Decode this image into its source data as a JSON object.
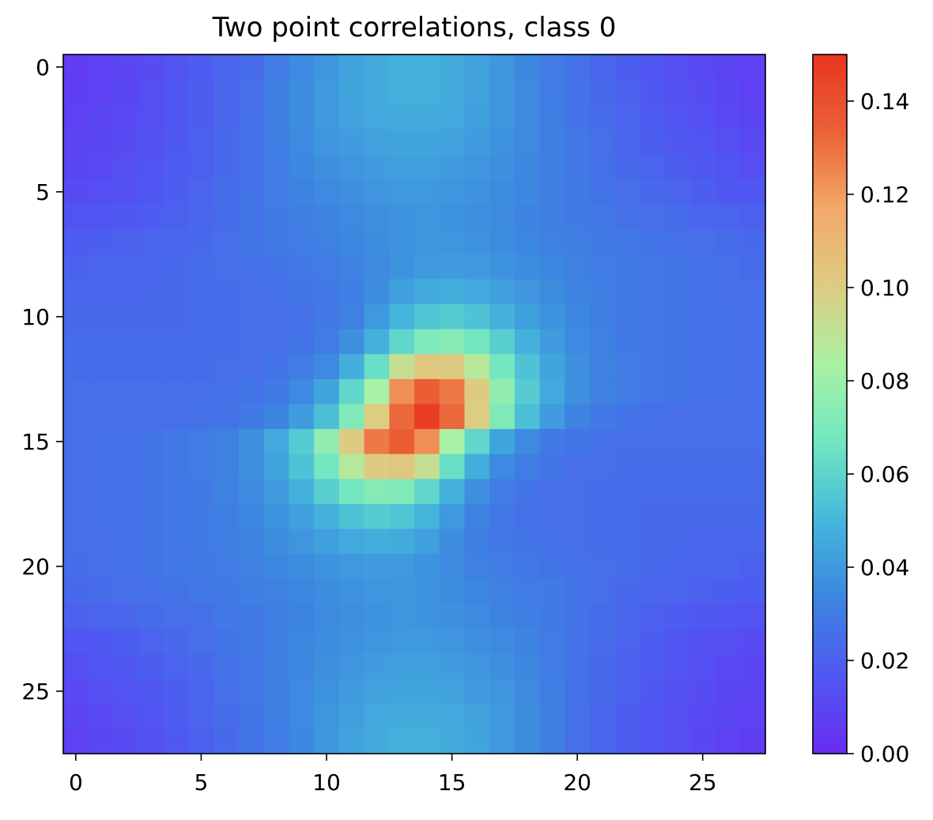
{
  "chart_data": {
    "type": "heatmap",
    "title": "Two point correlations, class 0",
    "xlabel": "",
    "ylabel": "",
    "rows": 28,
    "cols": 28,
    "xlim": [
      -0.5,
      27.5
    ],
    "ylim": [
      27.5,
      -0.5
    ],
    "xticks": [
      0,
      5,
      10,
      15,
      20,
      25
    ],
    "yticks": [
      0,
      5,
      10,
      15,
      20,
      25
    ],
    "colormap": "rainbow",
    "colorbar": {
      "min": 0.0,
      "max": 0.15,
      "ticks": [
        0.0,
        0.02,
        0.04,
        0.06,
        0.08,
        0.1,
        0.12,
        0.14
      ],
      "tick_labels": [
        "0.00",
        "0.02",
        "0.04",
        "0.06",
        "0.08",
        "0.10",
        "0.12",
        "0.14"
      ]
    },
    "peak": {
      "row": 14,
      "col": 14,
      "value": 0.147
    },
    "colormap_stops": [
      "#6a2cf2",
      "#4f58f2",
      "#3c85e0",
      "#44b7db",
      "#70e6c2",
      "#a9f1a4",
      "#dccd82",
      "#f3a96a",
      "#ea6238",
      "#e8351f"
    ],
    "values": [
      [
        0.006,
        0.008,
        0.01,
        0.012,
        0.015,
        0.018,
        0.021,
        0.024,
        0.03,
        0.035,
        0.039,
        0.043,
        0.046,
        0.048,
        0.048,
        0.046,
        0.043,
        0.039,
        0.034,
        0.03,
        0.026,
        0.022,
        0.019,
        0.016,
        0.013,
        0.011,
        0.009,
        0.008
      ],
      [
        0.007,
        0.008,
        0.01,
        0.013,
        0.016,
        0.019,
        0.022,
        0.025,
        0.031,
        0.036,
        0.04,
        0.044,
        0.046,
        0.048,
        0.048,
        0.046,
        0.043,
        0.039,
        0.035,
        0.03,
        0.027,
        0.023,
        0.02,
        0.017,
        0.014,
        0.012,
        0.01,
        0.008
      ],
      [
        0.008,
        0.009,
        0.011,
        0.013,
        0.016,
        0.019,
        0.022,
        0.026,
        0.031,
        0.036,
        0.04,
        0.043,
        0.045,
        0.046,
        0.046,
        0.045,
        0.042,
        0.039,
        0.035,
        0.031,
        0.027,
        0.024,
        0.021,
        0.018,
        0.015,
        0.013,
        0.011,
        0.009
      ],
      [
        0.009,
        0.01,
        0.012,
        0.014,
        0.017,
        0.02,
        0.023,
        0.026,
        0.031,
        0.035,
        0.039,
        0.041,
        0.043,
        0.044,
        0.044,
        0.043,
        0.041,
        0.038,
        0.035,
        0.031,
        0.028,
        0.025,
        0.022,
        0.019,
        0.017,
        0.015,
        0.013,
        0.011
      ],
      [
        0.01,
        0.011,
        0.013,
        0.015,
        0.018,
        0.02,
        0.023,
        0.026,
        0.03,
        0.034,
        0.037,
        0.039,
        0.041,
        0.042,
        0.042,
        0.041,
        0.039,
        0.037,
        0.034,
        0.031,
        0.028,
        0.026,
        0.023,
        0.021,
        0.019,
        0.017,
        0.015,
        0.013
      ],
      [
        0.012,
        0.013,
        0.014,
        0.016,
        0.018,
        0.021,
        0.024,
        0.027,
        0.03,
        0.033,
        0.035,
        0.037,
        0.039,
        0.04,
        0.04,
        0.039,
        0.038,
        0.036,
        0.034,
        0.031,
        0.029,
        0.027,
        0.025,
        0.023,
        0.021,
        0.019,
        0.017,
        0.016
      ],
      [
        0.015,
        0.016,
        0.017,
        0.018,
        0.02,
        0.022,
        0.024,
        0.027,
        0.029,
        0.031,
        0.033,
        0.035,
        0.037,
        0.038,
        0.039,
        0.038,
        0.037,
        0.035,
        0.033,
        0.031,
        0.029,
        0.028,
        0.026,
        0.025,
        0.024,
        0.022,
        0.021,
        0.02
      ],
      [
        0.018,
        0.019,
        0.02,
        0.021,
        0.022,
        0.023,
        0.025,
        0.027,
        0.029,
        0.03,
        0.032,
        0.034,
        0.036,
        0.038,
        0.039,
        0.039,
        0.038,
        0.036,
        0.034,
        0.032,
        0.031,
        0.029,
        0.028,
        0.027,
        0.026,
        0.025,
        0.024,
        0.023
      ],
      [
        0.02,
        0.021,
        0.021,
        0.022,
        0.023,
        0.024,
        0.025,
        0.026,
        0.027,
        0.028,
        0.03,
        0.032,
        0.035,
        0.038,
        0.04,
        0.041,
        0.04,
        0.038,
        0.036,
        0.034,
        0.032,
        0.03,
        0.029,
        0.028,
        0.027,
        0.026,
        0.025,
        0.024
      ],
      [
        0.022,
        0.022,
        0.022,
        0.023,
        0.023,
        0.024,
        0.024,
        0.025,
        0.026,
        0.027,
        0.028,
        0.031,
        0.036,
        0.042,
        0.046,
        0.047,
        0.045,
        0.042,
        0.039,
        0.036,
        0.033,
        0.031,
        0.029,
        0.028,
        0.027,
        0.026,
        0.025,
        0.025
      ],
      [
        0.023,
        0.023,
        0.023,
        0.023,
        0.023,
        0.024,
        0.024,
        0.025,
        0.025,
        0.026,
        0.028,
        0.032,
        0.04,
        0.049,
        0.055,
        0.057,
        0.054,
        0.048,
        0.042,
        0.038,
        0.034,
        0.031,
        0.029,
        0.028,
        0.027,
        0.026,
        0.026,
        0.025
      ],
      [
        0.024,
        0.024,
        0.024,
        0.024,
        0.024,
        0.024,
        0.024,
        0.025,
        0.025,
        0.027,
        0.03,
        0.037,
        0.048,
        0.061,
        0.071,
        0.073,
        0.068,
        0.058,
        0.048,
        0.041,
        0.035,
        0.032,
        0.029,
        0.028,
        0.027,
        0.026,
        0.026,
        0.025
      ],
      [
        0.024,
        0.024,
        0.024,
        0.024,
        0.024,
        0.024,
        0.025,
        0.025,
        0.027,
        0.03,
        0.035,
        0.047,
        0.064,
        0.092,
        0.103,
        0.101,
        0.088,
        0.068,
        0.054,
        0.044,
        0.037,
        0.032,
        0.03,
        0.028,
        0.027,
        0.026,
        0.026,
        0.025
      ],
      [
        0.025,
        0.025,
        0.025,
        0.025,
        0.025,
        0.025,
        0.026,
        0.027,
        0.029,
        0.035,
        0.044,
        0.061,
        0.083,
        0.123,
        0.135,
        0.128,
        0.101,
        0.076,
        0.057,
        0.045,
        0.037,
        0.032,
        0.03,
        0.028,
        0.027,
        0.026,
        0.026,
        0.025
      ],
      [
        0.025,
        0.025,
        0.025,
        0.025,
        0.025,
        0.026,
        0.027,
        0.029,
        0.033,
        0.041,
        0.053,
        0.071,
        0.1,
        0.132,
        0.147,
        0.132,
        0.1,
        0.071,
        0.053,
        0.041,
        0.033,
        0.029,
        0.027,
        0.026,
        0.025,
        0.025,
        0.025,
        0.025
      ],
      [
        0.025,
        0.026,
        0.026,
        0.027,
        0.028,
        0.03,
        0.032,
        0.037,
        0.045,
        0.057,
        0.076,
        0.101,
        0.128,
        0.135,
        0.123,
        0.083,
        0.061,
        0.044,
        0.035,
        0.029,
        0.027,
        0.026,
        0.025,
        0.025,
        0.025,
        0.025,
        0.025,
        0.025
      ],
      [
        0.025,
        0.026,
        0.026,
        0.027,
        0.028,
        0.03,
        0.032,
        0.037,
        0.044,
        0.054,
        0.068,
        0.088,
        0.101,
        0.103,
        0.092,
        0.064,
        0.047,
        0.035,
        0.03,
        0.027,
        0.025,
        0.025,
        0.024,
        0.024,
        0.024,
        0.024,
        0.024,
        0.024
      ],
      [
        0.025,
        0.026,
        0.026,
        0.027,
        0.028,
        0.029,
        0.032,
        0.035,
        0.041,
        0.048,
        0.058,
        0.068,
        0.073,
        0.071,
        0.061,
        0.048,
        0.037,
        0.03,
        0.027,
        0.025,
        0.025,
        0.024,
        0.024,
        0.024,
        0.024,
        0.024,
        0.024,
        0.024
      ],
      [
        0.025,
        0.026,
        0.026,
        0.027,
        0.028,
        0.029,
        0.031,
        0.034,
        0.038,
        0.042,
        0.048,
        0.054,
        0.057,
        0.055,
        0.049,
        0.04,
        0.032,
        0.028,
        0.026,
        0.025,
        0.025,
        0.024,
        0.024,
        0.023,
        0.023,
        0.023,
        0.023,
        0.023
      ],
      [
        0.025,
        0.025,
        0.026,
        0.027,
        0.028,
        0.029,
        0.031,
        0.033,
        0.036,
        0.039,
        0.042,
        0.045,
        0.047,
        0.046,
        0.042,
        0.036,
        0.031,
        0.028,
        0.027,
        0.026,
        0.025,
        0.024,
        0.024,
        0.023,
        0.023,
        0.022,
        0.022,
        0.022
      ],
      [
        0.024,
        0.025,
        0.026,
        0.027,
        0.028,
        0.029,
        0.03,
        0.032,
        0.034,
        0.036,
        0.038,
        0.04,
        0.041,
        0.04,
        0.038,
        0.035,
        0.032,
        0.03,
        0.028,
        0.027,
        0.026,
        0.025,
        0.024,
        0.023,
        0.022,
        0.021,
        0.021,
        0.02
      ],
      [
        0.023,
        0.024,
        0.025,
        0.026,
        0.027,
        0.028,
        0.029,
        0.031,
        0.032,
        0.034,
        0.036,
        0.038,
        0.039,
        0.039,
        0.038,
        0.036,
        0.034,
        0.032,
        0.03,
        0.029,
        0.027,
        0.025,
        0.023,
        0.022,
        0.021,
        0.02,
        0.019,
        0.018
      ],
      [
        0.02,
        0.021,
        0.022,
        0.024,
        0.025,
        0.026,
        0.028,
        0.029,
        0.031,
        0.033,
        0.035,
        0.037,
        0.038,
        0.039,
        0.038,
        0.037,
        0.035,
        0.033,
        0.031,
        0.029,
        0.027,
        0.024,
        0.022,
        0.02,
        0.018,
        0.017,
        0.016,
        0.015
      ],
      [
        0.016,
        0.017,
        0.019,
        0.021,
        0.023,
        0.025,
        0.027,
        0.029,
        0.031,
        0.034,
        0.036,
        0.038,
        0.039,
        0.04,
        0.04,
        0.039,
        0.037,
        0.035,
        0.033,
        0.03,
        0.027,
        0.024,
        0.021,
        0.018,
        0.016,
        0.014,
        0.013,
        0.012
      ],
      [
        0.013,
        0.015,
        0.017,
        0.019,
        0.021,
        0.023,
        0.026,
        0.028,
        0.031,
        0.034,
        0.037,
        0.039,
        0.041,
        0.042,
        0.042,
        0.041,
        0.039,
        0.037,
        0.034,
        0.03,
        0.026,
        0.023,
        0.02,
        0.018,
        0.015,
        0.013,
        0.011,
        0.01
      ],
      [
        0.011,
        0.013,
        0.015,
        0.017,
        0.019,
        0.022,
        0.025,
        0.028,
        0.031,
        0.035,
        0.038,
        0.041,
        0.043,
        0.044,
        0.044,
        0.043,
        0.041,
        0.039,
        0.035,
        0.031,
        0.026,
        0.023,
        0.02,
        0.017,
        0.014,
        0.012,
        0.01,
        0.009
      ],
      [
        0.009,
        0.011,
        0.013,
        0.015,
        0.018,
        0.021,
        0.024,
        0.027,
        0.031,
        0.035,
        0.039,
        0.042,
        0.045,
        0.046,
        0.046,
        0.045,
        0.043,
        0.04,
        0.036,
        0.031,
        0.026,
        0.022,
        0.019,
        0.016,
        0.013,
        0.011,
        0.009,
        0.008
      ],
      [
        0.008,
        0.01,
        0.012,
        0.014,
        0.017,
        0.02,
        0.023,
        0.027,
        0.03,
        0.034,
        0.039,
        0.043,
        0.046,
        0.048,
        0.048,
        0.046,
        0.044,
        0.04,
        0.036,
        0.031,
        0.025,
        0.022,
        0.019,
        0.016,
        0.013,
        0.01,
        0.008,
        0.007
      ]
    ]
  }
}
